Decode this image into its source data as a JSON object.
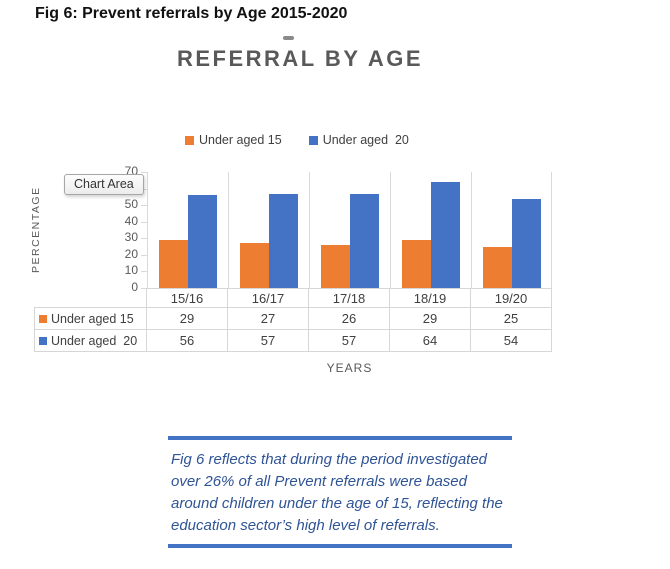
{
  "page": {
    "heading": "Fig 6: Prevent referrals by Age 2015-2020"
  },
  "chart": {
    "title": "REFERRAL BY AGE",
    "tooltip_label": "Chart Area",
    "y_axis_title": "PERCENTAGE",
    "x_axis_title": "YEARS"
  },
  "chart_data": {
    "type": "bar",
    "title": "REFERRAL BY AGE",
    "categories": [
      "15/16",
      "16/17",
      "17/18",
      "18/19",
      "19/20"
    ],
    "series": [
      {
        "name": "Under aged 15",
        "color": "#ED7D31",
        "values": [
          29,
          27,
          26,
          29,
          25
        ]
      },
      {
        "name": "Under aged  20",
        "color": "#4472C4",
        "values": [
          56,
          57,
          57,
          64,
          54
        ]
      }
    ],
    "xlabel": "YEARS",
    "ylabel": "PERCENTAGE",
    "ylim": [
      0,
      70
    ],
    "yticks": [
      0,
      10,
      20,
      30,
      40,
      50,
      60,
      70
    ],
    "grid": "vertical-only",
    "legend_position": "top",
    "data_table_shown": true
  },
  "quote": {
    "lines": [
      "Fig 6 reflects that during the period investigated",
      "over 26% of all Prevent referrals were based",
      "around children under the age of 15, reflecting the",
      "education sector’s high level of referrals."
    ]
  }
}
